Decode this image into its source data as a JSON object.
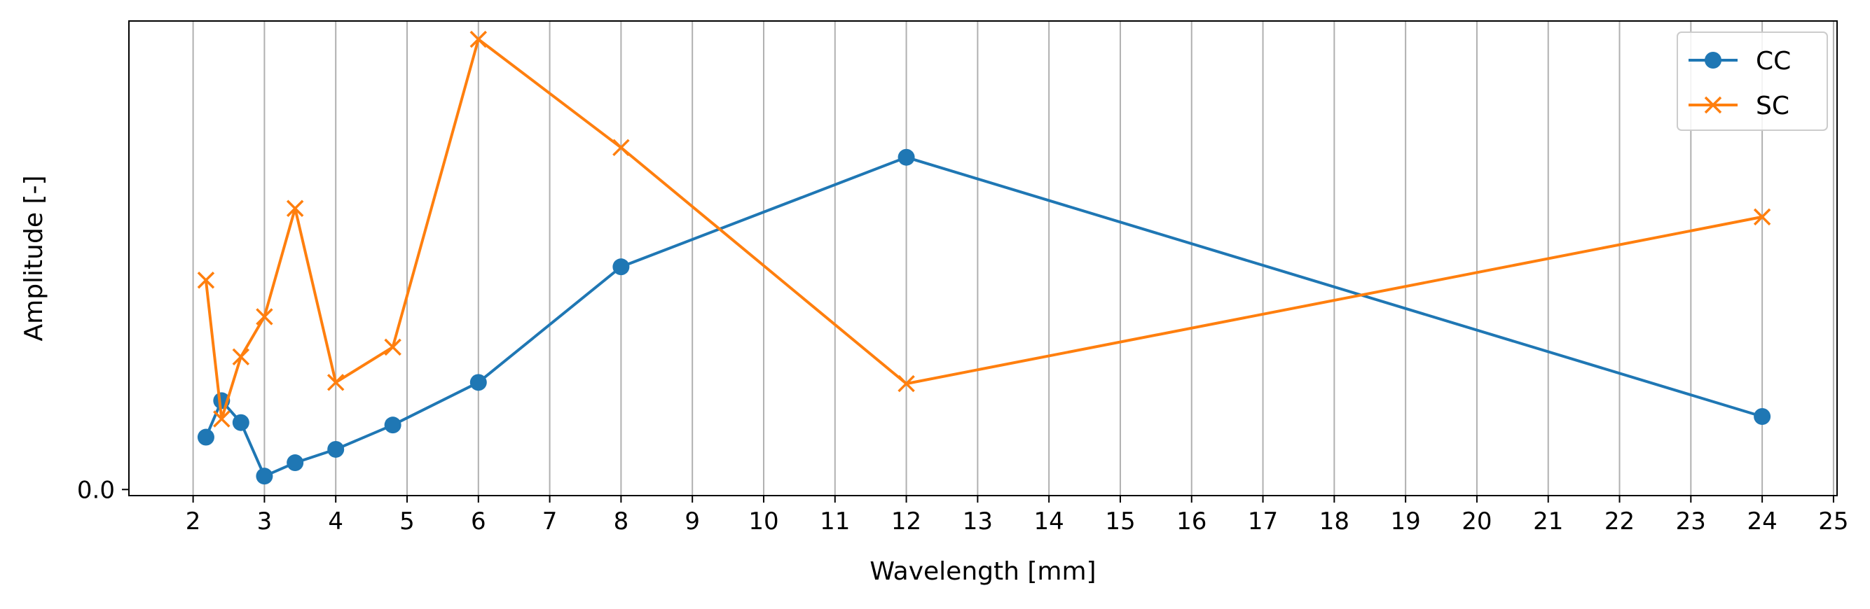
{
  "chart_data": {
    "type": "line",
    "xlabel": "Wavelength [mm]",
    "ylabel": "Amplitude [-]",
    "x_ticks": [
      2,
      3,
      4,
      5,
      6,
      7,
      8,
      9,
      10,
      11,
      12,
      13,
      14,
      15,
      16,
      17,
      18,
      19,
      20,
      21,
      22,
      23,
      24,
      25
    ],
    "y_ticks": [
      0.0
    ],
    "y_tick_labels": [
      "0.0"
    ],
    "xlim": [
      1.1,
      25.05
    ],
    "ylim": [
      -0.005,
      0.385
    ],
    "grid": "vertical",
    "legend_position": "top-right",
    "series": [
      {
        "name": "CC",
        "color": "#1f77b4",
        "marker": "circle",
        "x": [
          2.18,
          2.4,
          2.67,
          3.0,
          3.43,
          4.0,
          4.8,
          6.0,
          8.0,
          12.0,
          24.0
        ],
        "y": [
          0.043,
          0.073,
          0.055,
          0.011,
          0.022,
          0.033,
          0.053,
          0.088,
          0.183,
          0.273,
          0.06
        ]
      },
      {
        "name": "SC",
        "color": "#ff7f0e",
        "marker": "x",
        "x": [
          2.18,
          2.4,
          2.67,
          3.0,
          3.43,
          4.0,
          4.8,
          6.0,
          8.0,
          12.0,
          24.0
        ],
        "y": [
          0.172,
          0.058,
          0.109,
          0.142,
          0.231,
          0.088,
          0.117,
          0.37,
          0.281,
          0.087,
          0.224
        ]
      }
    ]
  }
}
